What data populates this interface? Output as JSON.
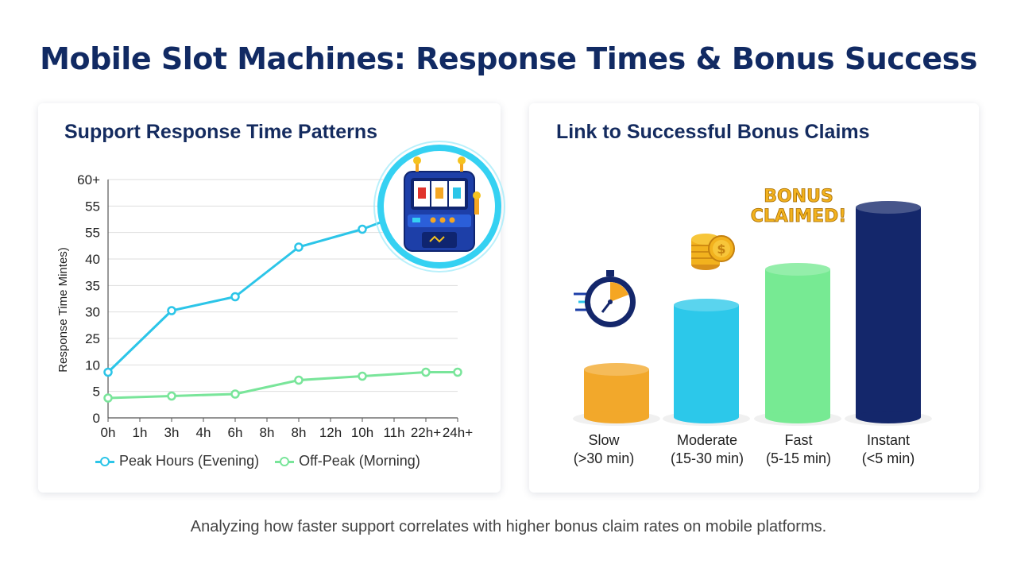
{
  "title": "Mobile Slot Machines: Response Times & Bonus Success",
  "subtitle": "Analyzing how faster support correlates with higher bonus claim rates on mobile platforms.",
  "left_panel": {
    "title": "Support Response Time Patterns",
    "legend": [
      "Peak Hours (Evening)",
      "Off-Peak (Morning)"
    ]
  },
  "right_panel": {
    "title": "Link to Successful Bonus Claims",
    "badge_line1": "BONUS",
    "badge_line2": "CLAIMED!",
    "categories": [
      {
        "name": "Slow",
        "range": "(>30 min)"
      },
      {
        "name": "Moderate",
        "range": "(15-30 min)"
      },
      {
        "name": "Fast",
        "range": "(5-15 min)"
      },
      {
        "name": "Instant",
        "range": "(<5 min)"
      }
    ]
  },
  "chart_data": [
    {
      "type": "line",
      "title": "Support Response Time Patterns",
      "xlabel": "",
      "ylabel": "Response Time  Mintes)",
      "x": [
        "0h",
        "1h",
        "3h",
        "4h",
        "6h",
        "8h",
        "8h",
        "12h",
        "10h",
        "11h",
        "22h+",
        "24h+"
      ],
      "yticks": [
        "0",
        "5",
        "10",
        "25",
        "30",
        "35",
        "40",
        "55",
        "55",
        "60+"
      ],
      "grid": true,
      "legend_position": "bottom",
      "series": [
        {
          "name": "Peak Hours (Evening)",
          "color": "#2cc5e8",
          "points": [
            [
              0,
              11.5
            ],
            [
              2,
              27
            ],
            [
              4,
              30.5
            ],
            [
              6,
              43
            ],
            [
              8,
              47.5
            ],
            [
              10,
              53.5
            ]
          ]
        },
        {
          "name": "Off-Peak (Morning)",
          "color": "#79e59a",
          "points": [
            [
              0,
              5
            ],
            [
              2,
              5.5
            ],
            [
              4,
              6
            ],
            [
              6,
              9.5
            ],
            [
              8,
              10.5
            ],
            [
              10,
              11.5
            ],
            [
              11,
              11.5
            ]
          ]
        }
      ]
    },
    {
      "type": "bar",
      "title": "Link to Successful Bonus Claims",
      "categories": [
        "Slow",
        "Moderate",
        "Fast",
        "Instant"
      ],
      "values": [
        20,
        47,
        62,
        88
      ],
      "colors": [
        "#f2a82b",
        "#2cc8ea",
        "#77ea93",
        "#14276b"
      ],
      "ylim": [
        0,
        100
      ]
    }
  ]
}
